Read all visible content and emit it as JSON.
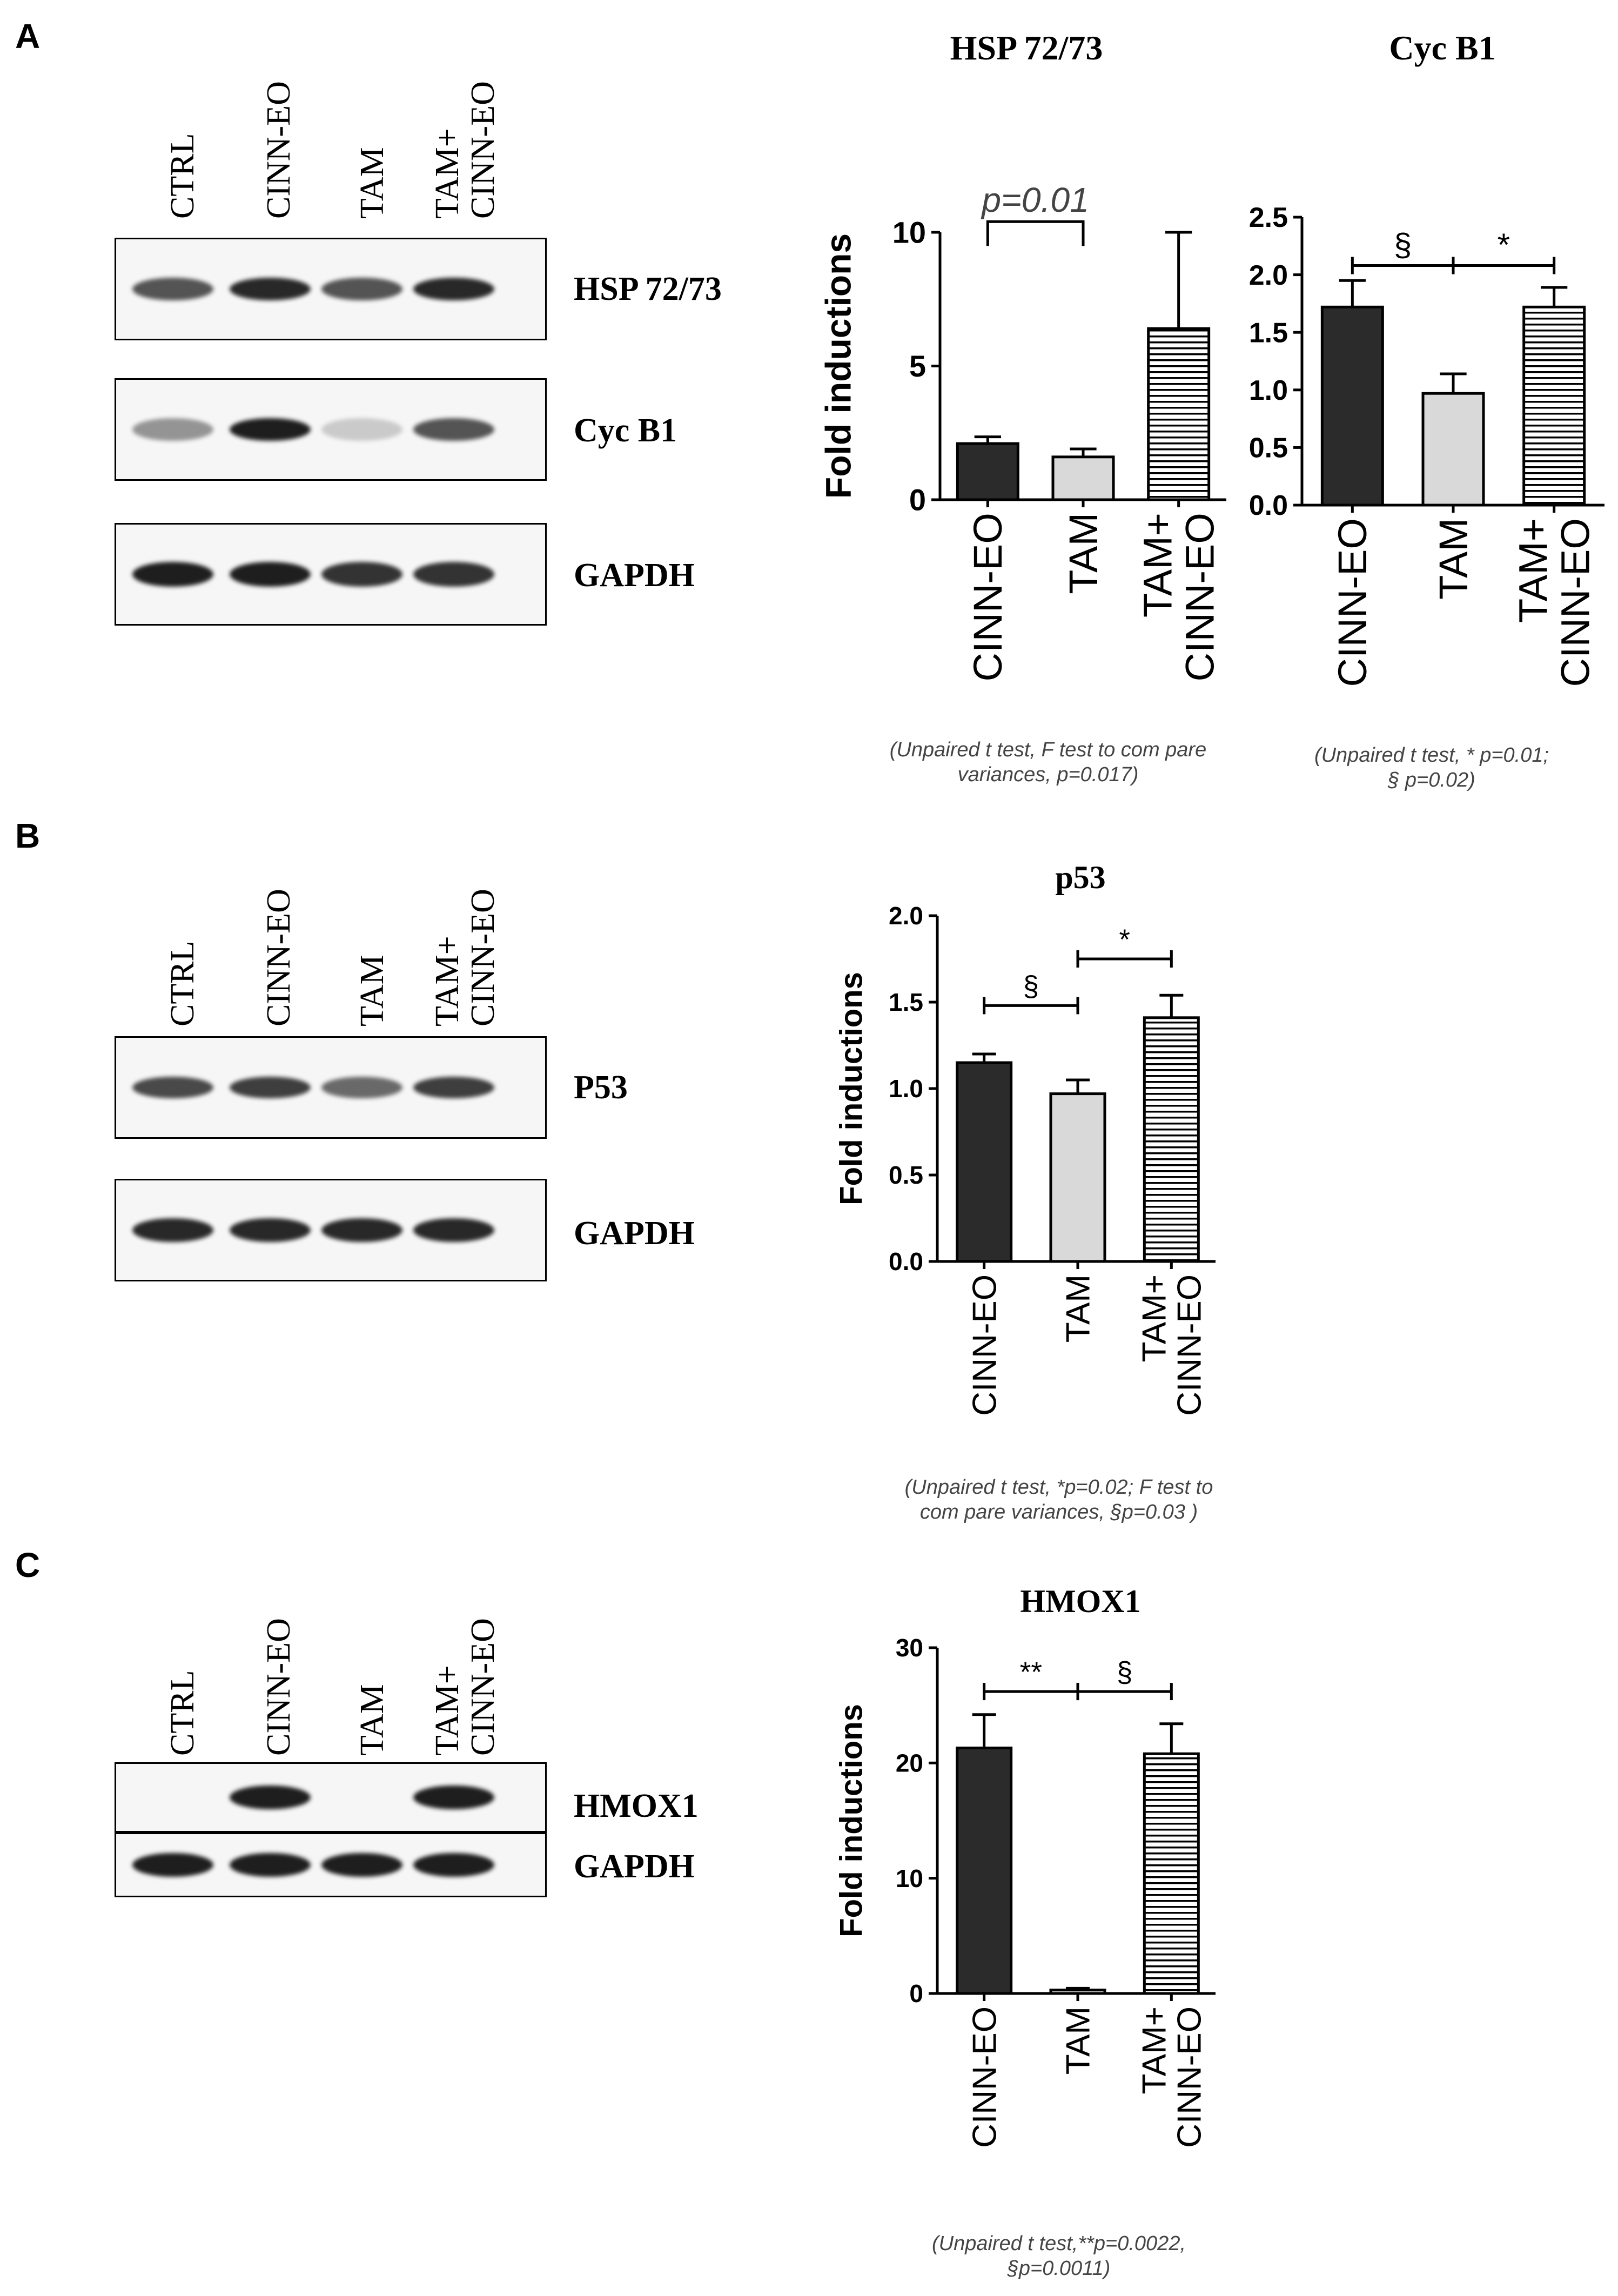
{
  "panels": {
    "A": {
      "letter": "A",
      "lanes": [
        [
          "CTRL"
        ],
        [
          "CINN-EO"
        ],
        [
          "TAM"
        ],
        [
          "TAM+",
          "CINN-EO"
        ]
      ],
      "blots": [
        "HSP 72/73",
        "Cyc B1",
        "GAPDH"
      ]
    },
    "B": {
      "letter": "B",
      "lanes": [
        [
          "CTRL"
        ],
        [
          "CINN-EO"
        ],
        [
          "TAM"
        ],
        [
          "TAM+",
          "CINN-EO"
        ]
      ],
      "blots": [
        "P53",
        "GAPDH"
      ]
    },
    "C": {
      "letter": "C",
      "lanes": [
        [
          "CTRL"
        ],
        [
          "CINN-EO"
        ],
        [
          "TAM"
        ],
        [
          "TAM+",
          "CINN-EO"
        ]
      ],
      "blots": [
        "HMOX1",
        "GAPDH"
      ]
    }
  },
  "band_intensity": {
    "A_HSP": [
      0.75,
      0.95,
      0.75,
      0.95
    ],
    "A_CycB1": [
      0.45,
      1.0,
      0.2,
      0.75
    ],
    "A_GAPDH": [
      1.0,
      1.0,
      0.9,
      0.9
    ],
    "B_P53": [
      0.8,
      0.85,
      0.65,
      0.85
    ],
    "B_GAPDH": [
      0.95,
      0.95,
      0.95,
      0.95
    ],
    "C_HMOX1": [
      0.0,
      1.0,
      0.0,
      1.0
    ],
    "C_GAPDH": [
      1.0,
      1.0,
      1.0,
      1.0
    ]
  },
  "colors": {
    "dark_bar": "#2b2b2b",
    "light_bar": "#d9d9d9",
    "striped_bar": "#ffffff",
    "axis": "#000000",
    "annotation": "#444444"
  },
  "chart_data": [
    {
      "id": "hsp",
      "type": "bar",
      "title": "HSP 72/73",
      "ylabel": "Fold inductions",
      "categories": [
        [
          "CINN-EO"
        ],
        [
          "TAM"
        ],
        [
          "TAM+",
          "CINN-EO"
        ]
      ],
      "values": [
        2.1,
        1.6,
        6.4
      ],
      "errors": [
        0.25,
        0.3,
        3.6
      ],
      "fills": [
        "dark",
        "light",
        "striped"
      ],
      "ylim": [
        0,
        10
      ],
      "yticks": [
        0,
        5,
        10
      ],
      "tick_labels": [
        "0",
        "5",
        "10"
      ],
      "annotations": [
        {
          "text": "p=0.01",
          "from": 0,
          "to": 1,
          "y": 10.4,
          "style": "bracket-down",
          "italic": true
        }
      ],
      "note": [
        "(Unpaired t test, F test to com pare",
        "variances, p=0.017)"
      ]
    },
    {
      "id": "cycb1",
      "type": "bar",
      "title": "Cyc B1",
      "ylabel": "",
      "categories": [
        [
          "CINN-EO"
        ],
        [
          "TAM"
        ],
        [
          "TAM+",
          "CINN-EO"
        ]
      ],
      "values": [
        1.72,
        0.97,
        1.72
      ],
      "errors": [
        0.23,
        0.17,
        0.17
      ],
      "fills": [
        "dark",
        "light",
        "striped"
      ],
      "ylim": [
        0,
        2.5
      ],
      "yticks": [
        0,
        0.5,
        1.0,
        1.5,
        2.0,
        2.5
      ],
      "tick_labels": [
        "0.0",
        "0.5",
        "1.0",
        "1.5",
        "2.0",
        "2.5"
      ],
      "annotations": [
        {
          "text": "§",
          "from": 0,
          "to": 1,
          "y": 2.08,
          "style": "line"
        },
        {
          "text": "*",
          "from": 1,
          "to": 2,
          "y": 2.08,
          "style": "line"
        }
      ],
      "note": [
        "(Unpaired t test, * p=0.01;",
        "§ p=0.02)"
      ]
    },
    {
      "id": "p53",
      "type": "bar",
      "title": "p53",
      "ylabel": "Fold inductions",
      "categories": [
        [
          "CINN-EO"
        ],
        [
          "TAM"
        ],
        [
          "TAM+",
          "CINN-EO"
        ]
      ],
      "values": [
        1.15,
        0.97,
        1.41
      ],
      "errors": [
        0.05,
        0.08,
        0.13
      ],
      "fills": [
        "dark",
        "light",
        "striped"
      ],
      "ylim": [
        0,
        2.0
      ],
      "yticks": [
        0,
        0.5,
        1.0,
        1.5,
        2.0
      ],
      "tick_labels": [
        "0.0",
        "0.5",
        "1.0",
        "1.5",
        "2.0"
      ],
      "annotations": [
        {
          "text": "§",
          "from": 0,
          "to": 1,
          "y": 1.48,
          "style": "line"
        },
        {
          "text": "*",
          "from": 1,
          "to": 2,
          "y": 1.75,
          "style": "line"
        }
      ],
      "note": [
        "(Unpaired t test, *p=0.02; F test to",
        "com pare variances, §p=0.03 )"
      ]
    },
    {
      "id": "hmox1",
      "type": "bar",
      "title": "HMOX1",
      "ylabel": "Fold inductions",
      "categories": [
        [
          "CINN-EO"
        ],
        [
          "TAM"
        ],
        [
          "TAM+",
          "CINN-EO"
        ]
      ],
      "values": [
        21.3,
        0.3,
        20.8
      ],
      "errors": [
        2.9,
        0.15,
        2.6
      ],
      "fills": [
        "dark",
        "light",
        "striped"
      ],
      "ylim": [
        0,
        30
      ],
      "yticks": [
        0,
        10,
        20,
        30
      ],
      "tick_labels": [
        "0",
        "10",
        "20",
        "30"
      ],
      "annotations": [
        {
          "text": "**",
          "from": 0,
          "to": 1,
          "y": 26.2,
          "style": "line"
        },
        {
          "text": "§",
          "from": 1,
          "to": 2,
          "y": 26.2,
          "style": "line"
        }
      ],
      "note": [
        "(Unpaired t test,**p=0.0022,",
        "§p=0.0011)"
      ]
    }
  ]
}
